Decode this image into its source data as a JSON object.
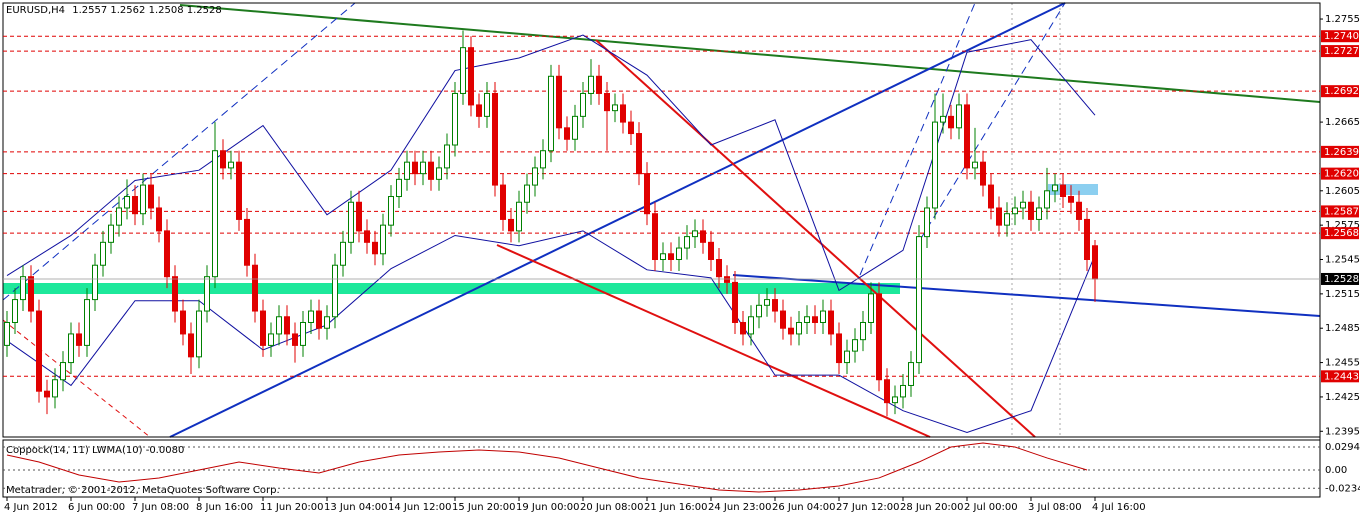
{
  "chart_data": {
    "type": "candlestick",
    "symbol": "EURUSD,H4",
    "open": [
      1.247,
      1.249,
      1.251,
      1.253,
      1.25,
      1.243,
      1.2425,
      1.244,
      1.2455,
      1.248,
      1.247,
      1.251,
      1.254,
      1.256,
      1.2575,
      1.259,
      1.26,
      1.2585,
      1.261,
      1.259,
      1.257,
      1.253,
      1.25,
      1.248,
      1.246,
      1.25,
      1.253,
      1.264,
      1.2625,
      1.263,
      1.258,
      1.254,
      1.25,
      1.247,
      1.248,
      1.2495,
      1.248,
      1.247,
      1.249,
      1.25,
      1.2485,
      1.2495,
      1.254,
      1.256,
      1.2595,
      1.257,
      1.256,
      1.255,
      1.2575,
      1.26,
      1.2615,
      1.263,
      1.262,
      1.263,
      1.2615,
      1.2625,
      1.2645,
      1.269,
      1.273,
      1.268,
      1.267,
      1.269,
      1.261,
      1.258,
      1.257,
      1.2595,
      1.261,
      1.2625,
      1.264,
      1.2705,
      1.266,
      1.265,
      1.267,
      1.269,
      1.2705,
      1.269,
      1.2675,
      1.268,
      1.2665,
      1.2655,
      1.262,
      1.2585,
      1.2545,
      1.255,
      1.2545,
      1.2555,
      1.2565,
      1.257,
      1.256,
      1.2545,
      1.253,
      1.2525,
      1.249,
      1.248,
      1.2495,
      1.2505,
      1.251,
      1.25,
      1.2485,
      1.248,
      1.249,
      1.2495,
      1.249,
      1.25,
      1.248,
      1.2455,
      1.2465,
      1.2475,
      1.249,
      1.2515,
      1.244,
      1.242,
      1.2425,
      1.2435,
      1.2455,
      1.2565,
      1.259,
      1.2665,
      1.267,
      1.266,
      1.268,
      1.2625,
      1.263,
      1.261,
      1.259,
      1.2575,
      1.2585,
      1.259,
      1.2595,
      1.258,
      1.259,
      1.2605,
      1.261,
      1.26,
      1.2595,
      1.258,
      1.2557
    ],
    "high": [
      1.25,
      1.252,
      1.254,
      1.254,
      1.251,
      1.244,
      1.245,
      1.2465,
      1.249,
      1.249,
      1.252,
      1.255,
      1.257,
      1.2585,
      1.26,
      1.2615,
      1.261,
      1.262,
      1.262,
      1.26,
      1.258,
      1.254,
      1.251,
      1.249,
      1.251,
      1.254,
      1.2665,
      1.265,
      1.264,
      1.264,
      1.259,
      1.255,
      1.251,
      1.249,
      1.2505,
      1.2505,
      1.249,
      1.25,
      1.251,
      1.251,
      1.2505,
      1.255,
      1.257,
      1.2605,
      1.2605,
      1.258,
      1.257,
      1.2585,
      1.261,
      1.2625,
      1.264,
      1.264,
      1.264,
      1.264,
      1.2635,
      1.2655,
      1.27,
      1.2745,
      1.274,
      1.269,
      1.27,
      1.27,
      1.262,
      1.259,
      1.2605,
      1.262,
      1.2635,
      1.265,
      1.2715,
      1.2715,
      1.267,
      1.268,
      1.27,
      1.272,
      1.2715,
      1.27,
      1.269,
      1.269,
      1.2675,
      1.2665,
      1.263,
      1.2595,
      1.256,
      1.256,
      1.2565,
      1.2575,
      1.258,
      1.258,
      1.257,
      1.2555,
      1.254,
      1.2535,
      1.25,
      1.2505,
      1.2515,
      1.252,
      1.252,
      1.251,
      1.2495,
      1.25,
      1.2505,
      1.2505,
      1.251,
      1.251,
      1.249,
      1.2475,
      1.2485,
      1.25,
      1.2525,
      1.2525,
      1.245,
      1.2435,
      1.2445,
      1.2465,
      1.2575,
      1.26,
      1.269,
      1.269,
      1.268,
      1.269,
      1.269,
      1.266,
      1.264,
      1.262,
      1.26,
      1.2595,
      1.26,
      1.2605,
      1.2605,
      1.26,
      1.2625,
      1.262,
      1.262,
      1.261,
      1.2605,
      1.259,
      1.2562
    ],
    "low": [
      1.246,
      1.248,
      1.25,
      1.249,
      1.242,
      1.241,
      1.2415,
      1.243,
      1.2445,
      1.246,
      1.246,
      1.25,
      1.253,
      1.255,
      1.2565,
      1.258,
      1.2575,
      1.2575,
      1.258,
      1.256,
      1.252,
      1.249,
      1.247,
      1.2445,
      1.245,
      1.249,
      1.252,
      1.2615,
      1.2615,
      1.257,
      1.253,
      1.249,
      1.246,
      1.246,
      1.247,
      1.247,
      1.2455,
      1.246,
      1.248,
      1.2475,
      1.2475,
      1.2485,
      1.253,
      1.255,
      1.256,
      1.255,
      1.254,
      1.254,
      1.2565,
      1.259,
      1.2605,
      1.261,
      1.261,
      1.2605,
      1.2605,
      1.2615,
      1.2635,
      1.268,
      1.267,
      1.266,
      1.266,
      1.26,
      1.257,
      1.256,
      1.256,
      1.2585,
      1.26,
      1.2615,
      1.263,
      1.265,
      1.264,
      1.264,
      1.266,
      1.268,
      1.268,
      1.264,
      1.2665,
      1.2655,
      1.2645,
      1.261,
      1.2575,
      1.2535,
      1.2535,
      1.2535,
      1.2535,
      1.2545,
      1.2555,
      1.255,
      1.2535,
      1.252,
      1.2515,
      1.248,
      1.247,
      1.247,
      1.2485,
      1.2495,
      1.249,
      1.2475,
      1.247,
      1.247,
      1.248,
      1.248,
      1.248,
      1.247,
      1.2445,
      1.2445,
      1.2455,
      1.2465,
      1.248,
      1.243,
      1.2408,
      1.241,
      1.2415,
      1.2425,
      1.2445,
      1.2555,
      1.258,
      1.2655,
      1.265,
      1.265,
      1.2615,
      1.2615,
      1.26,
      1.258,
      1.2565,
      1.2565,
      1.2575,
      1.258,
      1.257,
      1.257,
      1.258,
      1.2595,
      1.259,
      1.2585,
      1.257,
      1.2535,
      1.2508
    ],
    "close": [
      1.249,
      1.251,
      1.253,
      1.25,
      1.243,
      1.2425,
      1.244,
      1.2455,
      1.248,
      1.247,
      1.251,
      1.254,
      1.256,
      1.2575,
      1.259,
      1.26,
      1.2585,
      1.261,
      1.259,
      1.257,
      1.253,
      1.25,
      1.248,
      1.246,
      1.25,
      1.253,
      1.264,
      1.2625,
      1.263,
      1.258,
      1.254,
      1.25,
      1.247,
      1.248,
      1.2495,
      1.248,
      1.247,
      1.249,
      1.25,
      1.2485,
      1.2495,
      1.254,
      1.256,
      1.2595,
      1.257,
      1.256,
      1.255,
      1.2575,
      1.26,
      1.2615,
      1.263,
      1.262,
      1.263,
      1.2615,
      1.2625,
      1.2645,
      1.269,
      1.273,
      1.268,
      1.267,
      1.269,
      1.261,
      1.258,
      1.257,
      1.2595,
      1.261,
      1.2625,
      1.264,
      1.2705,
      1.266,
      1.265,
      1.267,
      1.269,
      1.2705,
      1.269,
      1.2675,
      1.268,
      1.2665,
      1.2655,
      1.262,
      1.2585,
      1.2545,
      1.255,
      1.2545,
      1.2555,
      1.2565,
      1.257,
      1.256,
      1.2545,
      1.253,
      1.2525,
      1.249,
      1.248,
      1.2495,
      1.2505,
      1.251,
      1.25,
      1.2485,
      1.248,
      1.249,
      1.2495,
      1.249,
      1.25,
      1.248,
      1.2455,
      1.2465,
      1.2475,
      1.249,
      1.2515,
      1.244,
      1.242,
      1.2425,
      1.2435,
      1.2455,
      1.2565,
      1.259,
      1.2665,
      1.267,
      1.266,
      1.268,
      1.2625,
      1.263,
      1.261,
      1.259,
      1.2575,
      1.2585,
      1.259,
      1.2595,
      1.258,
      1.259,
      1.2605,
      1.261,
      1.26,
      1.2595,
      1.258,
      1.2545,
      1.2528
    ],
    "up_color": "#008000",
    "down_color": "#e00000",
    "ylim": [
      1.239,
      1.2769
    ],
    "yticks": [
      1.2755,
      1.2665,
      1.2605,
      1.2575,
      1.2545,
      1.2515,
      1.2485,
      1.2455,
      1.2425,
      1.2395
    ],
    "xticks": [
      {
        "value": 0,
        "label": "4 Jun 2012"
      },
      {
        "value": 8,
        "label": "6 Jun 00:00"
      },
      {
        "value": 16,
        "label": "7 Jun 08:00"
      },
      {
        "value": 24,
        "label": "8 Jun 16:00"
      },
      {
        "value": 32,
        "label": "11 Jun 20:00"
      },
      {
        "value": 40,
        "label": "13 Jun 04:00"
      },
      {
        "value": 48,
        "label": "14 Jun 12:00"
      },
      {
        "value": 56,
        "label": "15 Jun 20:00"
      },
      {
        "value": 64,
        "label": "19 Jun 00:00"
      },
      {
        "value": 72,
        "label": "20 Jun 08:00"
      },
      {
        "value": 80,
        "label": "21 Jun 16:00"
      },
      {
        "value": 88,
        "label": "24 Jun 23:00"
      },
      {
        "value": 96,
        "label": "26 Jun 04:00"
      },
      {
        "value": 104,
        "label": "27 Jun 12:00"
      },
      {
        "value": 112,
        "label": "28 Jun 20:00"
      },
      {
        "value": 120,
        "label": "2 Jul 00:00"
      },
      {
        "value": 128,
        "label": "3 Jul 08:00"
      },
      {
        "value": 136,
        "label": "4 Jul 16:00"
      }
    ],
    "levels": [
      {
        "value": 1.274,
        "label": "1.2740"
      },
      1.2727,
      1.2692,
      1.2639,
      {
        "value": 1.262,
        "label": "1.2620"
      },
      1.2587,
      1.2568,
      1.2443
    ],
    "level_color": "#e00000",
    "bands": {
      "color": "#1010a0",
      "x": [
        0,
        8,
        16,
        24,
        32,
        40,
        48,
        56,
        64,
        72,
        80,
        88,
        96,
        104,
        112,
        120,
        128,
        136
      ],
      "upper": [
        1.2531,
        1.2566,
        1.2614,
        1.2623,
        1.2662,
        1.2584,
        1.2623,
        1.271,
        1.2721,
        1.2741,
        1.2706,
        1.2645,
        1.2667,
        1.2518,
        1.2553,
        1.2726,
        1.2737,
        1.2671
      ],
      "lower": [
        1.2474,
        1.2435,
        1.2509,
        1.2509,
        1.2466,
        1.2488,
        1.2537,
        1.2566,
        1.2557,
        1.257,
        1.2536,
        1.2529,
        1.2444,
        1.2444,
        1.2413,
        1.2394,
        1.2413,
        1.2549
      ]
    },
    "indicator": {
      "name": "Coppock(14, 11) LWMA(10) -0.0080",
      "color": "#c00000",
      "x": [
        0,
        4,
        9,
        14,
        19,
        24,
        29,
        34,
        39,
        44,
        49,
        54,
        59,
        64,
        69,
        74,
        79,
        84,
        89,
        94,
        99,
        104,
        109,
        114,
        118,
        122,
        126,
        130,
        135
      ],
      "values": [
        0.0192,
        0.0102,
        -0.0064,
        -0.0154,
        -0.0102,
        0,
        0.0102,
        0.0026,
        -0.0038,
        0.0102,
        0.0192,
        0.023,
        0.0256,
        0.023,
        0.0154,
        0.0026,
        -0.0102,
        -0.0179,
        -0.0256,
        -0.0282,
        -0.0256,
        -0.0205,
        -0.0102,
        0.0102,
        0.0294,
        0.0346,
        0.0294,
        0.0154,
        0
      ],
      "ylim": [
        -0.0346,
        0.0384
      ],
      "yticks": [
        0.0294,
        {
          "value": 0,
          "label": "0.00"
        },
        -0.0234
      ]
    },
    "copyright": "Metatrader, © 2001-2012, MetaQuotes Software Corp."
  }
}
